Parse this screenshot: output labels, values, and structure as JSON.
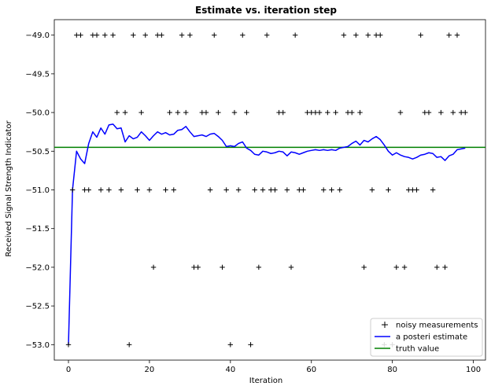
{
  "chart_data": {
    "type": "line",
    "title": "Estimate vs. iteration step",
    "xlabel": "Iteration",
    "ylabel": "Received Signal Strength Indicator",
    "xlim": [
      -3.5,
      103
    ],
    "ylim": [
      -53.2,
      -48.8
    ],
    "xticks": [
      0,
      20,
      40,
      60,
      80,
      100
    ],
    "yticks": [
      -49.0,
      -49.5,
      -50.0,
      -50.5,
      -51.0,
      -51.5,
      -52.0,
      -52.5,
      -53.0
    ],
    "xtick_labels": [
      "0",
      "20",
      "40",
      "60",
      "80",
      "100"
    ],
    "ytick_labels": [
      "−49.0",
      "−49.5",
      "−50.0",
      "−50.5",
      "−51.0",
      "−51.5",
      "−52.0",
      "−52.5",
      "−53.0"
    ],
    "grid": false,
    "legend_position": "bottom-right",
    "series": [
      {
        "name": "noisy measurements",
        "kind": "marker",
        "marker": "+",
        "color": "#000000",
        "x": [
          0,
          1,
          2,
          3,
          4,
          5,
          6,
          7,
          8,
          9,
          10,
          11,
          12,
          13,
          14,
          15,
          16,
          17,
          18,
          19,
          20,
          21,
          22,
          23,
          24,
          25,
          26,
          27,
          28,
          29,
          30,
          31,
          32,
          33,
          34,
          35,
          36,
          37,
          38,
          39,
          40,
          41,
          42,
          43,
          44,
          45,
          46,
          47,
          48,
          49,
          50,
          51,
          52,
          53,
          54,
          55,
          56,
          57,
          58,
          59,
          60,
          61,
          62,
          63,
          64,
          65,
          66,
          67,
          68,
          69,
          70,
          71,
          72,
          73,
          74,
          75,
          76,
          77,
          78,
          79,
          80,
          81,
          82,
          83,
          84,
          85,
          86,
          87,
          88,
          89,
          90,
          91,
          92,
          93,
          94,
          95,
          96,
          97,
          98
        ],
        "y": [
          -53,
          -51,
          -49,
          -49,
          -51,
          -51,
          -49,
          -49,
          -51,
          -49,
          -51,
          -49,
          -50,
          -51,
          -50,
          -53,
          -49,
          -51,
          -50,
          -49,
          -51,
          -52,
          -49,
          -49,
          -51,
          -50,
          -51,
          -50,
          -49,
          -50,
          -49,
          -52,
          -52,
          -50,
          -50,
          -51,
          -49,
          -50,
          -52,
          -51,
          -53,
          -50,
          -51,
          -49,
          -50,
          -53,
          -51,
          -52,
          -51,
          -49,
          -51,
          -51,
          -50,
          -50,
          -51,
          -52,
          -49,
          -51,
          -51,
          -50,
          -50,
          -50,
          -50,
          -51,
          -50,
          -51,
          -50,
          -51,
          -49,
          -50,
          -50,
          -49,
          -50,
          -52,
          -49,
          -51,
          -49,
          -49,
          -53,
          -51,
          -53,
          -52,
          -50,
          -52,
          -51,
          -51,
          -51,
          -49,
          -50,
          -50,
          -51,
          -52,
          -50,
          -52,
          -49,
          -50,
          -49,
          -50,
          -50
        ]
      },
      {
        "name": "a posteri estimate",
        "kind": "line",
        "color": "#0000ff",
        "x": [
          0,
          1,
          2,
          3,
          4,
          5,
          6,
          7,
          8,
          9,
          10,
          11,
          12,
          13,
          14,
          15,
          16,
          17,
          18,
          19,
          20,
          21,
          22,
          23,
          24,
          25,
          26,
          27,
          28,
          29,
          30,
          31,
          32,
          33,
          34,
          35,
          36,
          37,
          38,
          39,
          40,
          41,
          42,
          43,
          44,
          45,
          46,
          47,
          48,
          49,
          50,
          51,
          52,
          53,
          54,
          55,
          56,
          57,
          58,
          59,
          60,
          61,
          62,
          63,
          64,
          65,
          66,
          67,
          68,
          69,
          70,
          71,
          72,
          73,
          74,
          75,
          76,
          77,
          78,
          79,
          80,
          81,
          82,
          83,
          84,
          85,
          86,
          87,
          88,
          89,
          90,
          91,
          92,
          93,
          94,
          95,
          96,
          97,
          98
        ],
        "y": [
          -53,
          -51,
          -50.5,
          -50.6,
          -50.66,
          -50.4,
          -50.25,
          -50.32,
          -50.2,
          -50.28,
          -50.16,
          -50.15,
          -50.21,
          -50.2,
          -50.38,
          -50.3,
          -50.34,
          -50.32,
          -50.25,
          -50.3,
          -50.36,
          -50.3,
          -50.25,
          -50.28,
          -50.26,
          -50.29,
          -50.28,
          -50.23,
          -50.22,
          -50.18,
          -50.25,
          -50.31,
          -50.3,
          -50.29,
          -50.31,
          -50.28,
          -50.27,
          -50.31,
          -50.36,
          -50.44,
          -50.43,
          -50.44,
          -50.4,
          -50.38,
          -50.46,
          -50.49,
          -50.54,
          -50.55,
          -50.5,
          -50.51,
          -50.53,
          -50.52,
          -50.5,
          -50.51,
          -50.56,
          -50.51,
          -50.52,
          -50.54,
          -50.52,
          -50.5,
          -50.49,
          -50.48,
          -50.49,
          -50.48,
          -50.49,
          -50.48,
          -50.49,
          -50.46,
          -50.45,
          -50.44,
          -50.4,
          -50.37,
          -50.42,
          -50.36,
          -50.38,
          -50.34,
          -50.31,
          -50.35,
          -50.42,
          -50.5,
          -50.55,
          -50.52,
          -50.55,
          -50.57,
          -50.58,
          -50.6,
          -50.58,
          -50.55,
          -50.54,
          -50.52,
          -50.53,
          -50.58,
          -50.57,
          -50.62,
          -50.56,
          -50.54,
          -50.48,
          -50.47,
          -50.46
        ]
      },
      {
        "name": "truth value",
        "kind": "hline",
        "color": "#008000",
        "y": -50.45
      }
    ]
  }
}
